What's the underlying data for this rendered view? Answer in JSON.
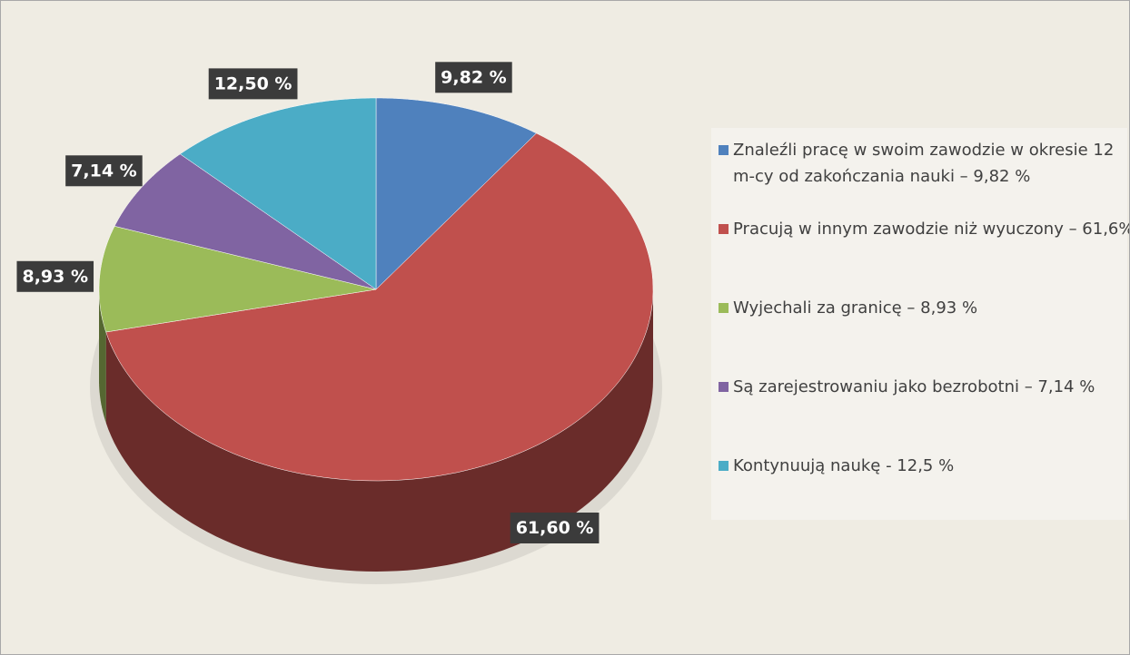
{
  "chart_data": {
    "type": "pie3d",
    "categories": [
      "Znaleźli pracę w swoim zawodzie w okresie 12 m-cy od zakończania nauki – 9,82 %",
      "Pracują w innym zawodzie niż wyuczony – 61,6%",
      "Wyjechali za granicę – 8,93 %",
      "Są zarejestrowaniu jako bezrobotni – 7,14 %",
      "Kontynuują naukę - 12,5 %"
    ],
    "values": [
      9.82,
      61.6,
      8.93,
      7.14,
      12.5
    ],
    "value_labels": [
      "9,82 %",
      "61,60 %",
      "8,93 %",
      "7,14 %",
      "12,50 %"
    ],
    "colors": [
      "#4f81bd",
      "#c0504d",
      "#9bbb59",
      "#8064a2",
      "#4bacc6"
    ],
    "legend": "right"
  }
}
